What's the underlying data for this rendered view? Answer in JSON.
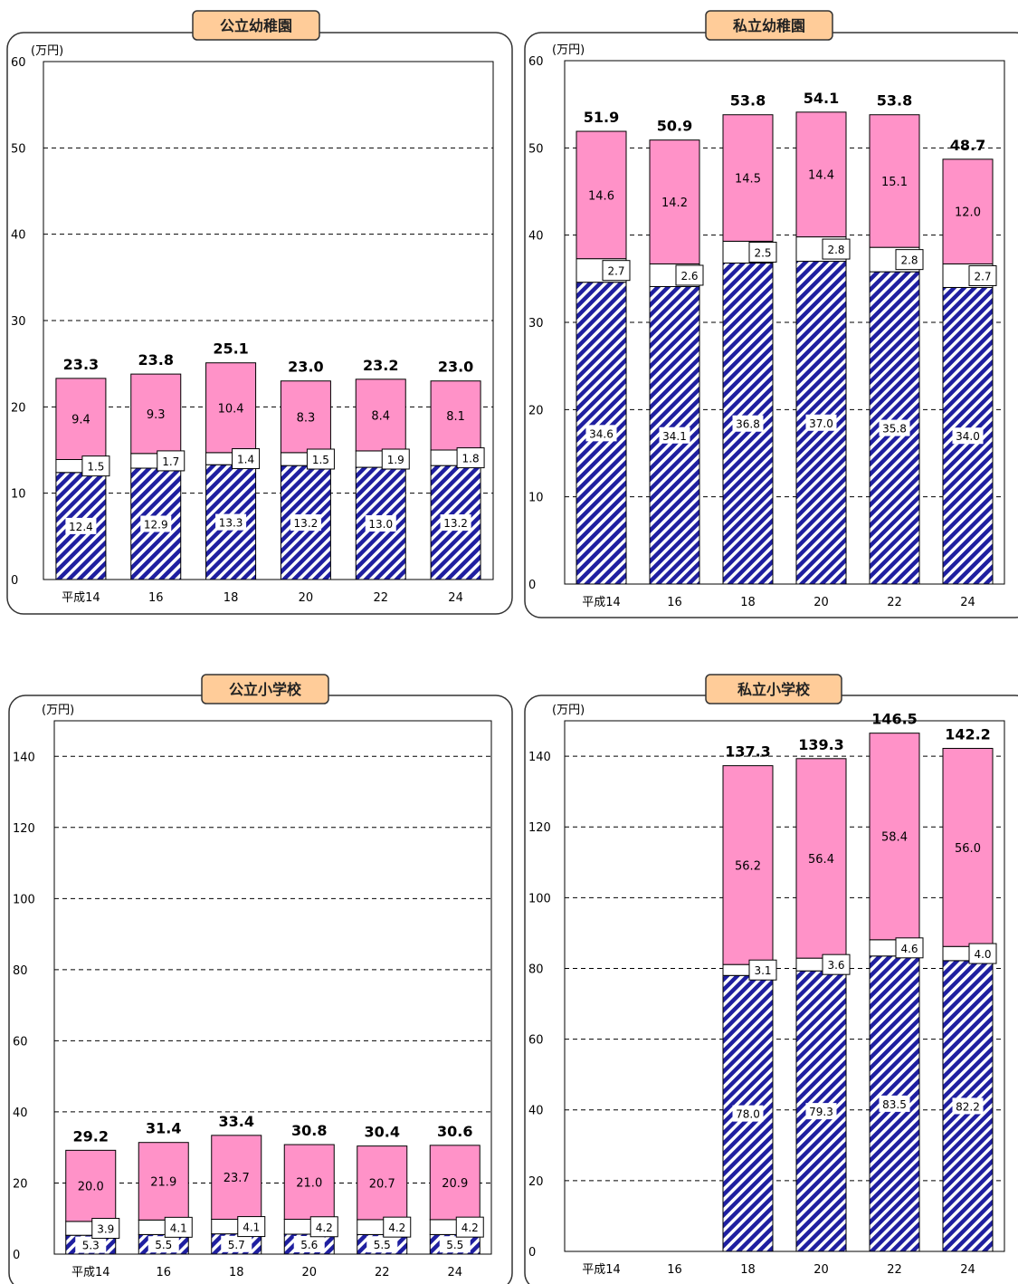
{
  "chart_data": [
    {
      "type": "bar",
      "stacked": true,
      "title": "公立幼稚園",
      "unit": "(万円)",
      "categories": [
        "平成14",
        "16",
        "18",
        "20",
        "22",
        "24"
      ],
      "ylim": [
        0,
        60
      ],
      "yticks": [
        0,
        10,
        20,
        30,
        40,
        50,
        60
      ],
      "grid": true,
      "series": [
        {
          "values": [
            12.4,
            12.9,
            13.3,
            13.2,
            13.0,
            13.2
          ]
        },
        {
          "values": [
            1.5,
            1.7,
            1.4,
            1.5,
            1.9,
            1.8
          ]
        },
        {
          "values": [
            9.4,
            9.3,
            10.4,
            8.3,
            8.4,
            8.1
          ]
        }
      ],
      "totals": [
        23.3,
        23.8,
        25.1,
        23.0,
        23.2,
        23.0
      ]
    },
    {
      "type": "bar",
      "stacked": true,
      "title": "私立幼稚園",
      "unit": "(万円)",
      "categories": [
        "平成14",
        "16",
        "18",
        "20",
        "22",
        "24"
      ],
      "ylim": [
        0,
        60
      ],
      "yticks": [
        0,
        10,
        20,
        30,
        40,
        50,
        60
      ],
      "grid": true,
      "series": [
        {
          "values": [
            34.6,
            34.1,
            36.8,
            37.0,
            35.8,
            34.0
          ]
        },
        {
          "values": [
            2.7,
            2.6,
            2.5,
            2.8,
            2.8,
            2.7
          ]
        },
        {
          "values": [
            14.6,
            14.2,
            14.5,
            14.4,
            15.1,
            12.0
          ]
        }
      ],
      "totals": [
        51.9,
        50.9,
        53.8,
        54.1,
        53.8,
        48.7
      ]
    },
    {
      "type": "bar",
      "stacked": true,
      "title": "公立小学校",
      "unit": "(万円)",
      "categories": [
        "平成14",
        "16",
        "18",
        "20",
        "22",
        "24"
      ],
      "ylim": [
        0,
        150
      ],
      "yticks": [
        0,
        20,
        40,
        60,
        80,
        100,
        120,
        140
      ],
      "grid": true,
      "series": [
        {
          "values": [
            5.3,
            5.5,
            5.7,
            5.6,
            5.5,
            5.5
          ]
        },
        {
          "values": [
            3.9,
            4.1,
            4.1,
            4.2,
            4.2,
            4.2
          ]
        },
        {
          "values": [
            20.0,
            21.9,
            23.7,
            21.0,
            20.7,
            20.9
          ]
        }
      ],
      "totals": [
        29.2,
        31.4,
        33.4,
        30.8,
        30.4,
        30.6
      ]
    },
    {
      "type": "bar",
      "stacked": true,
      "title": "私立小学校",
      "unit": "(万円)",
      "categories": [
        "平成14",
        "16",
        "18",
        "20",
        "22",
        "24"
      ],
      "ylim": [
        0,
        150
      ],
      "yticks": [
        0,
        20,
        40,
        60,
        80,
        100,
        120,
        140
      ],
      "grid": true,
      "series": [
        {
          "values": [
            null,
            null,
            78.0,
            79.3,
            83.5,
            82.2
          ]
        },
        {
          "values": [
            null,
            null,
            3.1,
            3.6,
            4.6,
            4.0
          ]
        },
        {
          "values": [
            null,
            null,
            56.2,
            56.4,
            58.4,
            56.0
          ]
        }
      ],
      "totals": [
        null,
        null,
        137.3,
        139.3,
        146.5,
        142.2
      ]
    }
  ],
  "colors": {
    "series": [
      "#1f1fa0",
      "#ffffff",
      "#ff92c8"
    ],
    "title_bg": "#ffcc99",
    "frame": "#333333",
    "grid": "#000000"
  }
}
